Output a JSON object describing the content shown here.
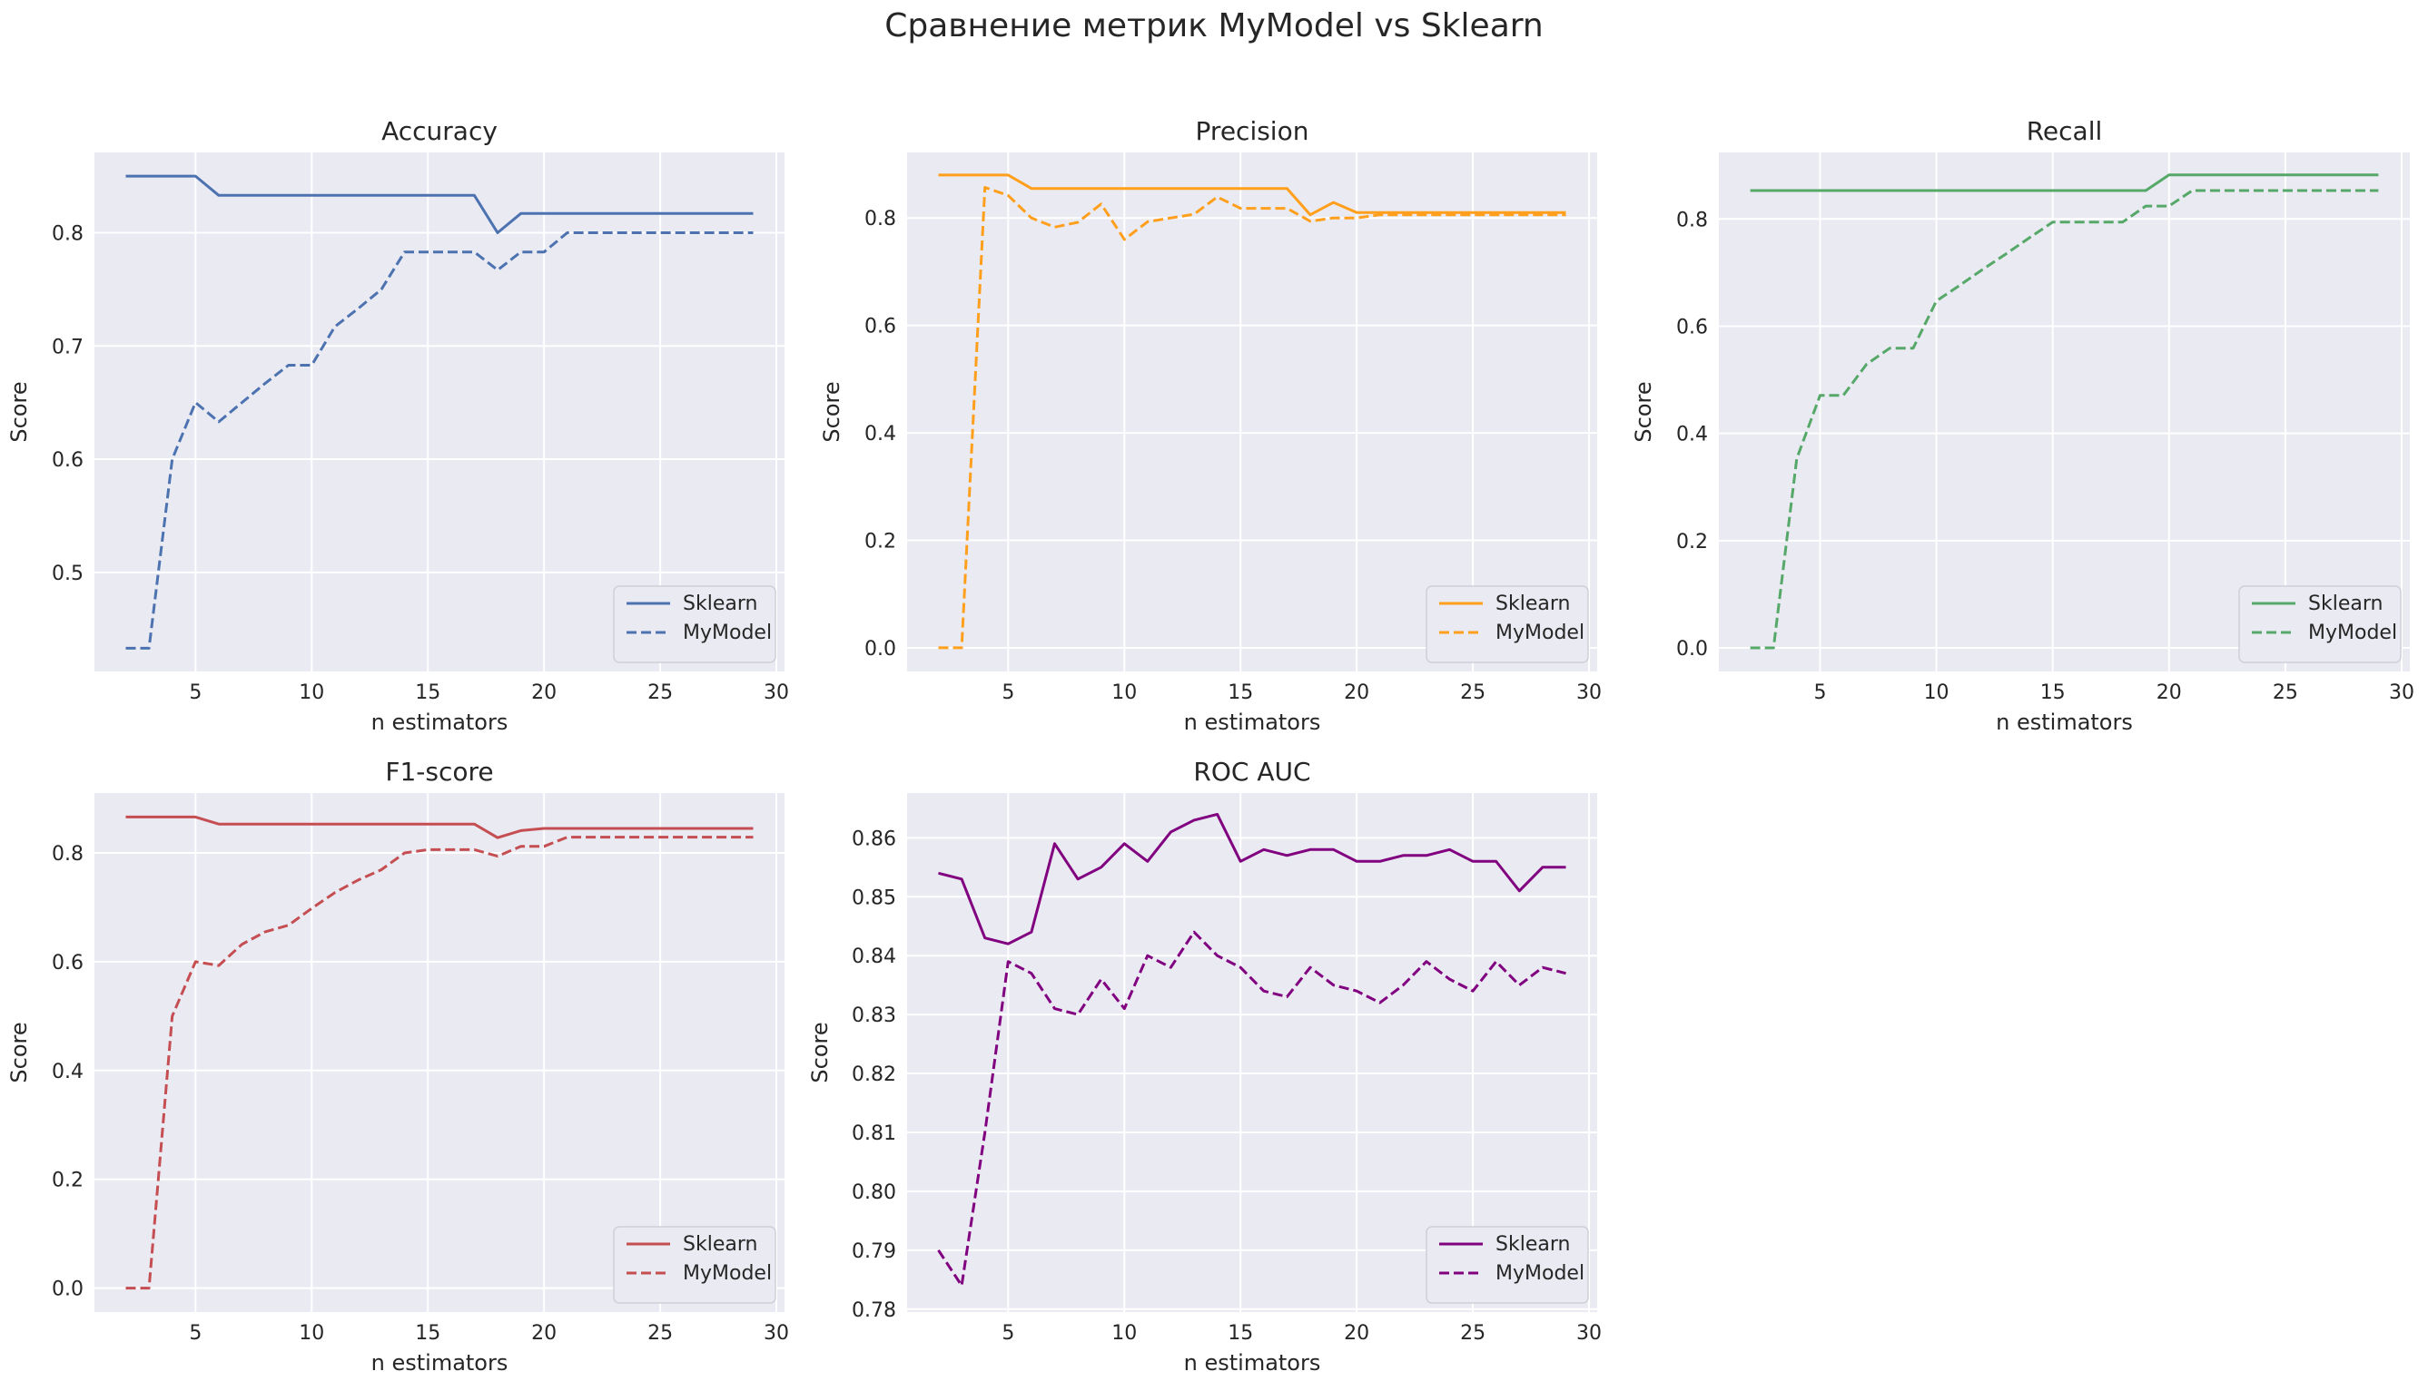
{
  "suptitle": "Сравнение метрик MyModel vs Sklearn",
  "chart_data": [
    {
      "type": "line",
      "title": "Accuracy",
      "xlabel": "n estimators",
      "ylabel": "Score",
      "xlim": [
        0.65,
        30.35
      ],
      "ylim": [
        0.4125,
        0.8709
      ],
      "xticks": [
        5,
        10,
        15,
        20,
        25,
        30
      ],
      "yticks": [
        0.5,
        0.6,
        0.7,
        0.8
      ],
      "yticklabels": [
        "0.5",
        "0.6",
        "0.7",
        "0.8"
      ],
      "color": "#4c72b0",
      "grid": true,
      "legend": "lower-right",
      "x": [
        2,
        3,
        4,
        5,
        6,
        7,
        8,
        9,
        10,
        11,
        12,
        13,
        14,
        15,
        16,
        17,
        18,
        19,
        20,
        21,
        22,
        23,
        24,
        25,
        26,
        27,
        28,
        29
      ],
      "series": [
        {
          "name": "Sklearn",
          "style": "solid",
          "values": [
            0.85,
            0.85,
            0.85,
            0.85,
            0.833,
            0.833,
            0.833,
            0.833,
            0.833,
            0.833,
            0.833,
            0.833,
            0.833,
            0.833,
            0.833,
            0.833,
            0.8,
            0.817,
            0.817,
            0.817,
            0.817,
            0.817,
            0.817,
            0.817,
            0.817,
            0.817,
            0.817,
            0.817
          ]
        },
        {
          "name": "MyModel",
          "style": "dashed",
          "values": [
            0.433,
            0.433,
            0.6,
            0.65,
            0.633,
            0.65,
            0.667,
            0.683,
            0.683,
            0.717,
            0.733,
            0.75,
            0.783,
            0.783,
            0.783,
            0.783,
            0.767,
            0.783,
            0.783,
            0.8,
            0.8,
            0.8,
            0.8,
            0.8,
            0.8,
            0.8,
            0.8,
            0.8
          ]
        }
      ]
    },
    {
      "type": "line",
      "title": "Precision",
      "xlabel": "n estimators",
      "ylabel": "Score",
      "xlim": [
        0.65,
        30.35
      ],
      "ylim": [
        -0.044,
        0.922
      ],
      "xticks": [
        5,
        10,
        15,
        20,
        25,
        30
      ],
      "yticks": [
        0.0,
        0.2,
        0.4,
        0.6,
        0.8
      ],
      "yticklabels": [
        "0.0",
        "0.2",
        "0.4",
        "0.6",
        "0.8"
      ],
      "color": "#ff9f1c",
      "grid": true,
      "legend": "lower-right",
      "x": [
        2,
        3,
        4,
        5,
        6,
        7,
        8,
        9,
        10,
        11,
        12,
        13,
        14,
        15,
        16,
        17,
        18,
        19,
        20,
        21,
        22,
        23,
        24,
        25,
        26,
        27,
        28,
        29
      ],
      "series": [
        {
          "name": "Sklearn",
          "style": "solid",
          "values": [
            0.88,
            0.88,
            0.88,
            0.88,
            0.855,
            0.855,
            0.855,
            0.855,
            0.855,
            0.855,
            0.855,
            0.855,
            0.855,
            0.855,
            0.855,
            0.855,
            0.806,
            0.829,
            0.81,
            0.81,
            0.81,
            0.81,
            0.81,
            0.81,
            0.81,
            0.81,
            0.81,
            0.81
          ]
        },
        {
          "name": "MyModel",
          "style": "dashed",
          "values": [
            0.0,
            0.0,
            0.857,
            0.842,
            0.8,
            0.783,
            0.792,
            0.826,
            0.76,
            0.793,
            0.8,
            0.807,
            0.839,
            0.818,
            0.818,
            0.818,
            0.794,
            0.8,
            0.8,
            0.806,
            0.806,
            0.806,
            0.806,
            0.806,
            0.806,
            0.806,
            0.806,
            0.806
          ]
        }
      ]
    },
    {
      "type": "line",
      "title": "Recall",
      "xlabel": "n estimators",
      "ylabel": "Score",
      "xlim": [
        0.65,
        30.35
      ],
      "ylim": [
        -0.044,
        0.924
      ],
      "xticks": [
        5,
        10,
        15,
        20,
        25,
        30
      ],
      "yticks": [
        0.0,
        0.2,
        0.4,
        0.6,
        0.8
      ],
      "yticklabels": [
        "0.0",
        "0.2",
        "0.4",
        "0.6",
        "0.8"
      ],
      "color": "#55a868",
      "grid": true,
      "legend": "lower-right",
      "x": [
        2,
        3,
        4,
        5,
        6,
        7,
        8,
        9,
        10,
        11,
        12,
        13,
        14,
        15,
        16,
        17,
        18,
        19,
        20,
        21,
        22,
        23,
        24,
        25,
        26,
        27,
        28,
        29
      ],
      "series": [
        {
          "name": "Sklearn",
          "style": "solid",
          "values": [
            0.853,
            0.853,
            0.853,
            0.853,
            0.853,
            0.853,
            0.853,
            0.853,
            0.853,
            0.853,
            0.853,
            0.853,
            0.853,
            0.853,
            0.853,
            0.853,
            0.853,
            0.853,
            0.882,
            0.882,
            0.882,
            0.882,
            0.882,
            0.882,
            0.882,
            0.882,
            0.882,
            0.882
          ]
        },
        {
          "name": "MyModel",
          "style": "dashed",
          "values": [
            0.0,
            0.0,
            0.353,
            0.471,
            0.471,
            0.529,
            0.559,
            0.559,
            0.647,
            0.676,
            0.706,
            0.735,
            0.765,
            0.794,
            0.794,
            0.794,
            0.794,
            0.824,
            0.824,
            0.853,
            0.853,
            0.853,
            0.853,
            0.853,
            0.853,
            0.853,
            0.853,
            0.853
          ]
        }
      ]
    },
    {
      "type": "line",
      "title": "F1-score",
      "xlabel": "n estimators",
      "ylabel": "Score",
      "xlim": [
        0.65,
        30.35
      ],
      "ylim": [
        -0.044,
        0.91
      ],
      "xticks": [
        5,
        10,
        15,
        20,
        25,
        30
      ],
      "yticks": [
        0.0,
        0.2,
        0.4,
        0.6,
        0.8
      ],
      "yticklabels": [
        "0.0",
        "0.2",
        "0.4",
        "0.6",
        "0.8"
      ],
      "color": "#c44e52",
      "grid": true,
      "legend": "lower-right",
      "x": [
        2,
        3,
        4,
        5,
        6,
        7,
        8,
        9,
        10,
        11,
        12,
        13,
        14,
        15,
        16,
        17,
        18,
        19,
        20,
        21,
        22,
        23,
        24,
        25,
        26,
        27,
        28,
        29
      ],
      "series": [
        {
          "name": "Sklearn",
          "style": "solid",
          "values": [
            0.866,
            0.866,
            0.866,
            0.866,
            0.853,
            0.853,
            0.853,
            0.853,
            0.853,
            0.853,
            0.853,
            0.853,
            0.853,
            0.853,
            0.853,
            0.853,
            0.828,
            0.841,
            0.845,
            0.845,
            0.845,
            0.845,
            0.845,
            0.845,
            0.845,
            0.845,
            0.845,
            0.845
          ]
        },
        {
          "name": "MyModel",
          "style": "dashed",
          "values": [
            0.0,
            0.0,
            0.5,
            0.6,
            0.593,
            0.632,
            0.655,
            0.667,
            0.698,
            0.727,
            0.75,
            0.769,
            0.8,
            0.806,
            0.806,
            0.806,
            0.794,
            0.812,
            0.812,
            0.829,
            0.829,
            0.829,
            0.829,
            0.829,
            0.829,
            0.829,
            0.829,
            0.829
          ]
        }
      ]
    },
    {
      "type": "line",
      "title": "ROC AUC",
      "xlabel": "n estimators",
      "ylabel": "Score",
      "xlim": [
        0.65,
        30.35
      ],
      "ylim": [
        0.7795,
        0.8676
      ],
      "xticks": [
        5,
        10,
        15,
        20,
        25,
        30
      ],
      "yticks": [
        0.78,
        0.79,
        0.8,
        0.81,
        0.82,
        0.83,
        0.84,
        0.85,
        0.86
      ],
      "yticklabels": [
        "0.78",
        "0.79",
        "0.80",
        "0.81",
        "0.82",
        "0.83",
        "0.84",
        "0.85",
        "0.86"
      ],
      "color": "#800080",
      "grid": true,
      "legend": "lower-right",
      "x": [
        2,
        3,
        4,
        5,
        6,
        7,
        8,
        9,
        10,
        11,
        12,
        13,
        14,
        15,
        16,
        17,
        18,
        19,
        20,
        21,
        22,
        23,
        24,
        25,
        26,
        27,
        28,
        29
      ],
      "series": [
        {
          "name": "Sklearn",
          "style": "solid",
          "values": [
            0.854,
            0.853,
            0.843,
            0.842,
            0.844,
            0.859,
            0.853,
            0.855,
            0.859,
            0.856,
            0.861,
            0.863,
            0.864,
            0.856,
            0.858,
            0.857,
            0.858,
            0.858,
            0.856,
            0.856,
            0.857,
            0.857,
            0.858,
            0.856,
            0.856,
            0.851,
            0.855,
            0.855
          ]
        },
        {
          "name": "MyModel",
          "style": "dashed",
          "values": [
            0.79,
            0.784,
            0.81,
            0.839,
            0.837,
            0.831,
            0.83,
            0.836,
            0.831,
            0.84,
            0.838,
            0.844,
            0.84,
            0.838,
            0.834,
            0.833,
            0.838,
            0.835,
            0.834,
            0.832,
            0.835,
            0.839,
            0.836,
            0.834,
            0.839,
            0.835,
            0.838,
            0.837
          ]
        }
      ]
    }
  ]
}
